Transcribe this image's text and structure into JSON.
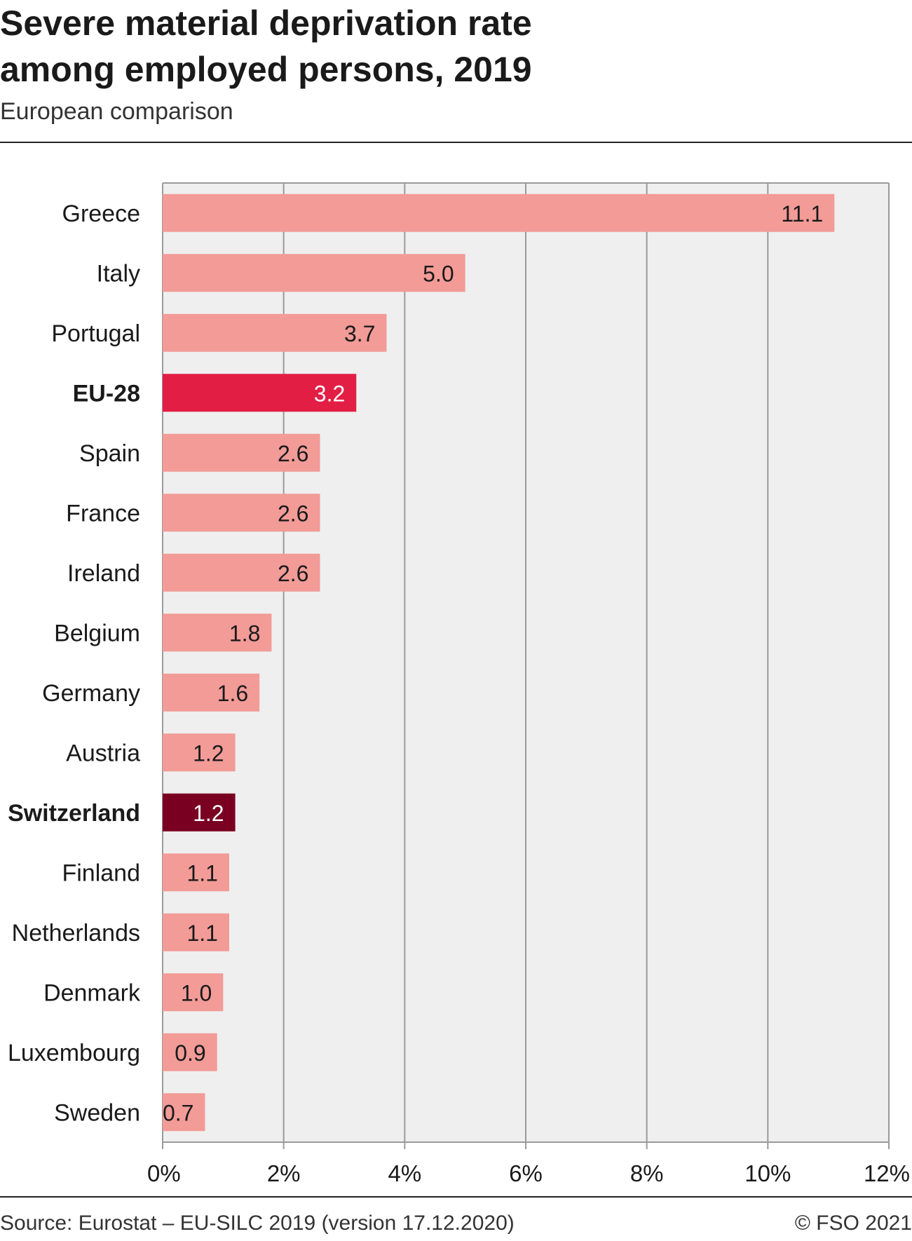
{
  "header": {
    "title_line1": "Severe material deprivation rate",
    "title_line2": "among employed persons, 2019",
    "subtitle": "European comparison"
  },
  "footer": {
    "source": "Source: Eurostat – EU-SILC 2019 (version 17.12.2020)",
    "copyright": "© FSO 2021"
  },
  "chart_data": {
    "type": "bar",
    "orientation": "horizontal",
    "title": "Severe material deprivation rate among employed persons, 2019",
    "subtitle": "European comparison",
    "xlim": [
      0,
      12
    ],
    "x_ticks": [
      0,
      2,
      4,
      6,
      8,
      10,
      12
    ],
    "x_tick_labels": [
      "0%",
      "2%",
      "4%",
      "6%",
      "8%",
      "10%",
      "12%"
    ],
    "grid": true,
    "categories": [
      "Greece",
      "Italy",
      "Portugal",
      "EU-28",
      "Spain",
      "France",
      "Ireland",
      "Belgium",
      "Germany",
      "Austria",
      "Switzerland",
      "Finland",
      "Netherlands",
      "Denmark",
      "Luxembourg",
      "Sweden"
    ],
    "values": [
      11.1,
      5.0,
      3.7,
      3.2,
      2.6,
      2.6,
      2.6,
      1.8,
      1.6,
      1.2,
      1.2,
      1.1,
      1.1,
      1.0,
      0.9,
      0.7
    ],
    "value_labels": [
      "11.1",
      "5.0",
      "3.7",
      "3.2",
      "2.6",
      "2.6",
      "2.6",
      "1.8",
      "1.6",
      "1.2",
      "1.2",
      "1.1",
      "1.1",
      "1.0",
      "0.9",
      "0.7"
    ],
    "highlighted": {
      "EU-28": "#e31e45",
      "Switzerland": "#7a0022"
    },
    "colors": {
      "default_bar": "#f29b97",
      "plot_background": "#efefef",
      "grid": "#9a9a9a"
    }
  }
}
